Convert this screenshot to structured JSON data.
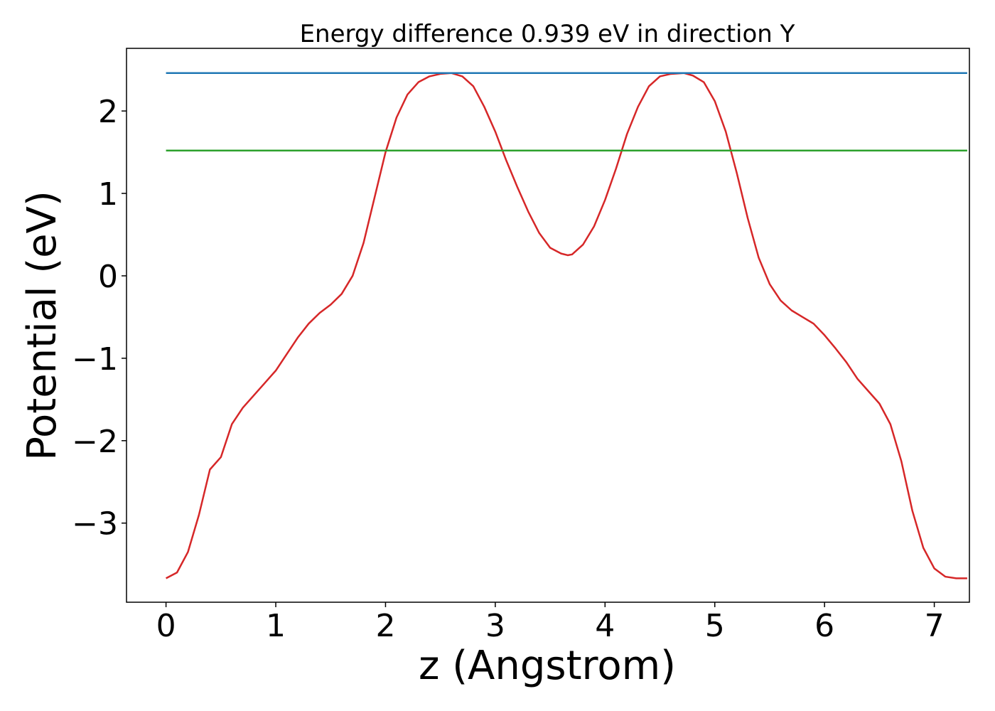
{
  "chart_data": {
    "type": "line",
    "title": "Energy difference 0.939 eV in direction Y",
    "xlabel": "z (Angstrom)",
    "ylabel": "Potential (eV)",
    "xlim": [
      -0.36,
      7.32
    ],
    "ylim": [
      -3.96,
      2.76
    ],
    "xticks": [
      0,
      1,
      2,
      3,
      4,
      5,
      6,
      7
    ],
    "xtick_labels": [
      "0",
      "1",
      "2",
      "3",
      "4",
      "5",
      "6",
      "7"
    ],
    "yticks": [
      2,
      1,
      0,
      -1,
      -2,
      -3
    ],
    "ytick_labels": [
      "2",
      "1",
      "0",
      "−1",
      "−2",
      "−3"
    ],
    "grid": false,
    "series": [
      {
        "color": "#d62728",
        "x": [
          0.0,
          0.1,
          0.2,
          0.3,
          0.4,
          0.5,
          0.6,
          0.7,
          0.8,
          0.9,
          1.0,
          1.1,
          1.2,
          1.3,
          1.4,
          1.5,
          1.6,
          1.7,
          1.8,
          1.9,
          2.0,
          2.1,
          2.2,
          2.3,
          2.4,
          2.5,
          2.6,
          2.7,
          2.8,
          2.9,
          3.0,
          3.1,
          3.2,
          3.3,
          3.4,
          3.5,
          3.6,
          3.66,
          3.7,
          3.8,
          3.9,
          4.0,
          4.1,
          4.2,
          4.3,
          4.4,
          4.5,
          4.6,
          4.72,
          4.8,
          4.9,
          5.0,
          5.1,
          5.2,
          5.3,
          5.4,
          5.5,
          5.6,
          5.7,
          5.8,
          5.9,
          6.0,
          6.1,
          6.2,
          6.3,
          6.4,
          6.5,
          6.6,
          6.7,
          6.8,
          6.9,
          7.0,
          7.1,
          7.2,
          7.3
        ],
        "y": [
          -3.67,
          -3.6,
          -3.35,
          -2.9,
          -2.35,
          -2.2,
          -1.8,
          -1.6,
          -1.45,
          -1.3,
          -1.15,
          -0.95,
          -0.75,
          -0.58,
          -0.45,
          -0.35,
          -0.22,
          0.0,
          0.4,
          0.95,
          1.5,
          1.92,
          2.2,
          2.35,
          2.42,
          2.45,
          2.46,
          2.42,
          2.3,
          2.05,
          1.75,
          1.4,
          1.08,
          0.78,
          0.52,
          0.34,
          0.27,
          0.25,
          0.26,
          0.38,
          0.6,
          0.92,
          1.3,
          1.72,
          2.05,
          2.3,
          2.42,
          2.45,
          2.46,
          2.43,
          2.35,
          2.12,
          1.75,
          1.25,
          0.7,
          0.22,
          -0.1,
          -0.3,
          -0.42,
          -0.5,
          -0.58,
          -0.72,
          -0.88,
          -1.05,
          -1.25,
          -1.4,
          -1.55,
          -1.8,
          -2.25,
          -2.85,
          -3.3,
          -3.55,
          -3.65,
          -3.67,
          -3.67
        ]
      },
      {
        "color": "#1f77b4",
        "x": [
          0.0,
          7.3
        ],
        "y": [
          2.46,
          2.46
        ]
      },
      {
        "color": "#2ca02c",
        "x": [
          0.0,
          7.3
        ],
        "y": [
          1.52,
          1.52
        ]
      }
    ]
  }
}
